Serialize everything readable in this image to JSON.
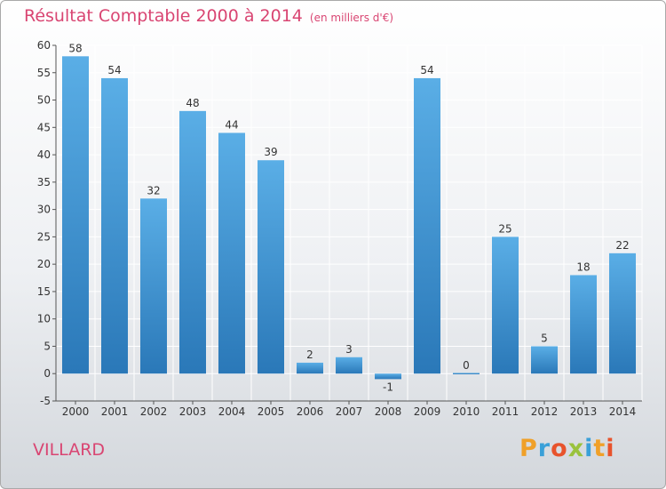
{
  "title": "Résultat Comptable 2000 à 2014",
  "unit_note": "(en milliers d'€)",
  "commune": "VILLARD",
  "brand": {
    "text": "Proxiti",
    "letter_colors": [
      "#f0a028",
      "#3aa0d8",
      "#e8532c",
      "#9ac23c",
      "#3aa0d8",
      "#f0a028",
      "#e8532c"
    ]
  },
  "colors": {
    "bar_top": "#5aaee6",
    "bar_bottom": "#2a78b8",
    "title": "#d94572",
    "grid": "#ffffff",
    "axis": "#555555",
    "label": "#333333"
  },
  "chart_data": {
    "type": "bar",
    "title": "Résultat Comptable 2000 à 2014",
    "subtitle": "(en milliers d'€)",
    "xlabel": "",
    "ylabel": "",
    "categories": [
      "2000",
      "2001",
      "2002",
      "2003",
      "2004",
      "2005",
      "2006",
      "2007",
      "2008",
      "2009",
      "2010",
      "2011",
      "2012",
      "2013",
      "2014"
    ],
    "values": [
      58,
      54,
      32,
      48,
      44,
      39,
      2,
      3,
      -1,
      54,
      0,
      25,
      5,
      18,
      22
    ],
    "value_labels": [
      "58",
      "54",
      "32",
      "48",
      "44",
      "39",
      "2",
      "3",
      "-1",
      "54",
      "0",
      "25",
      "5",
      "18",
      "22"
    ],
    "ylim": [
      -5,
      60
    ],
    "yticks": [
      -5,
      0,
      5,
      10,
      15,
      20,
      25,
      30,
      35,
      40,
      45,
      50,
      55,
      60
    ],
    "grid": true
  }
}
